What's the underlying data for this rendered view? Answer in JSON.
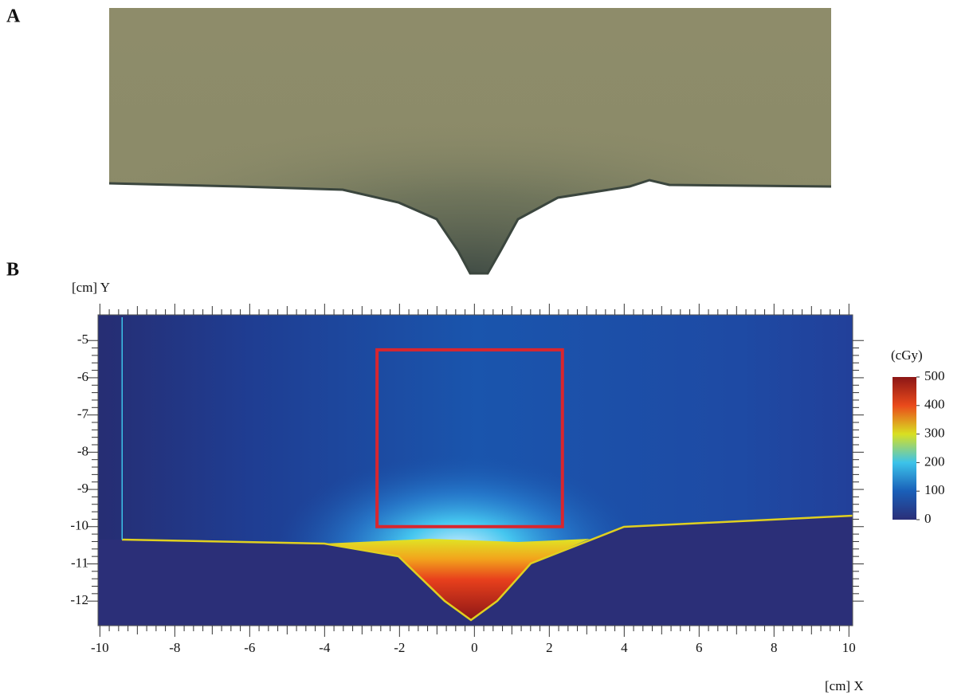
{
  "chart_data": {
    "type": "heatmap",
    "panel_labels": [
      "A",
      "B"
    ],
    "xlabel": "[cm] X",
    "ylabel": "[cm] Y",
    "xlim": [
      -10.05,
      10.1
    ],
    "ylim": [
      -12.66,
      -4.31
    ],
    "xticks": [
      -10,
      -8,
      -6,
      -4,
      -2,
      0,
      2,
      4,
      6,
      8,
      10
    ],
    "yticks": [
      -5,
      -6,
      -7,
      -8,
      -9,
      -10,
      -11,
      -12
    ],
    "colorbar": {
      "label": "(cGy)",
      "lim": [
        0,
        500
      ],
      "ticks": [
        0,
        100,
        200,
        300,
        400,
        500
      ],
      "colors": [
        "#2b2f78",
        "#1a5fb8",
        "#3cc3ea",
        "#d9e021",
        "#ea4a1b",
        "#8c1616"
      ]
    },
    "roi": {
      "x": [
        -2.6,
        2.35
      ],
      "y": [
        -10,
        -5.25
      ],
      "color": "#d9262e"
    }
  }
}
